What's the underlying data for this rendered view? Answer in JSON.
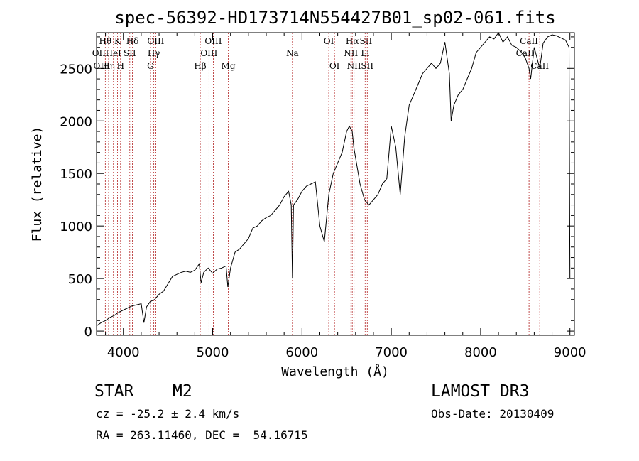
{
  "chart_data": {
    "type": "line",
    "title": "spec-56392-HD173714N554427B01_sp02-061.fits",
    "xlabel": "Wavelength (Å)",
    "ylabel": "Flux (relative)",
    "xlim": [
      3700,
      9050
    ],
    "ylim": [
      -40,
      2840
    ],
    "xticks": [
      4000,
      5000,
      6000,
      7000,
      8000,
      9000
    ],
    "yticks": [
      0,
      500,
      1000,
      1500,
      2000,
      2500
    ],
    "series": [
      {
        "name": "spectrum",
        "x": [
          3700,
          3750,
          3800,
          3850,
          3900,
          3950,
          4000,
          4050,
          4100,
          4150,
          4200,
          4230,
          4260,
          4300,
          4350,
          4400,
          4450,
          4500,
          4550,
          4600,
          4650,
          4700,
          4750,
          4800,
          4850,
          4870,
          4900,
          4950,
          5000,
          5050,
          5100,
          5150,
          5170,
          5200,
          5250,
          5300,
          5350,
          5400,
          5450,
          5500,
          5550,
          5600,
          5650,
          5700,
          5750,
          5800,
          5850,
          5880,
          5893,
          5905,
          5950,
          6000,
          6050,
          6100,
          6150,
          6200,
          6250,
          6300,
          6350,
          6400,
          6450,
          6500,
          6530,
          6563,
          6580,
          6600,
          6650,
          6700,
          6750,
          6800,
          6850,
          6900,
          6950,
          7000,
          7050,
          7100,
          7150,
          7200,
          7250,
          7300,
          7350,
          7400,
          7450,
          7500,
          7550,
          7600,
          7650,
          7670,
          7700,
          7750,
          7800,
          7850,
          7900,
          7950,
          8000,
          8050,
          8100,
          8150,
          8200,
          8250,
          8300,
          8350,
          8400,
          8450,
          8500,
          8542,
          8560,
          8600,
          8662,
          8700,
          8750,
          8800,
          8850,
          8900,
          8950,
          8990,
          9000
        ],
        "y": [
          50,
          80,
          100,
          130,
          150,
          180,
          200,
          220,
          240,
          250,
          260,
          80,
          230,
          280,
          300,
          350,
          380,
          450,
          520,
          540,
          560,
          570,
          560,
          580,
          640,
          460,
          560,
          600,
          550,
          590,
          600,
          620,
          420,
          600,
          750,
          780,
          830,
          880,
          980,
          1000,
          1050,
          1080,
          1100,
          1150,
          1200,
          1280,
          1330,
          1200,
          500,
          1200,
          1250,
          1330,
          1380,
          1400,
          1420,
          1000,
          850,
          1300,
          1500,
          1600,
          1700,
          1900,
          1950,
          1900,
          1750,
          1650,
          1400,
          1250,
          1200,
          1250,
          1300,
          1400,
          1450,
          1950,
          1750,
          1300,
          1850,
          2150,
          2250,
          2350,
          2450,
          2500,
          2550,
          2500,
          2550,
          2750,
          2450,
          2000,
          2150,
          2250,
          2300,
          2400,
          2500,
          2650,
          2700,
          2750,
          2800,
          2780,
          2840,
          2750,
          2800,
          2720,
          2700,
          2660,
          2600,
          2500,
          2400,
          2700,
          2500,
          2740,
          2800,
          2820,
          2810,
          2790,
          2770,
          2700,
          500
        ]
      }
    ],
    "lines": [
      {
        "name": "Hθ",
        "x": 3798,
        "row": 0
      },
      {
        "name": "OII",
        "x": 3727,
        "row": 1
      },
      {
        "name": "OIII",
        "x": 3760,
        "row": 2
      },
      {
        "name": "Hη",
        "x": 3835,
        "row": 2
      },
      {
        "name": "HeI",
        "x": 3889,
        "row": 1
      },
      {
        "name": "K",
        "x": 3934,
        "row": 0
      },
      {
        "name": "H",
        "x": 3969,
        "row": 2
      },
      {
        "name": "SII",
        "x": 4072,
        "row": 1
      },
      {
        "name": "Hδ",
        "x": 4102,
        "row": 0
      },
      {
        "name": "G",
        "x": 4304,
        "row": 2
      },
      {
        "name": "Hγ",
        "x": 4341,
        "row": 1
      },
      {
        "name": "OIII",
        "x": 4363,
        "row": 0
      },
      {
        "name": "Hβ",
        "x": 4861,
        "row": 2
      },
      {
        "name": "OIII",
        "x": 4959,
        "row": 1
      },
      {
        "name": "OIII",
        "x": 5007,
        "row": 0
      },
      {
        "name": "Mg",
        "x": 5175,
        "row": 2
      },
      {
        "name": "Na",
        "x": 5893,
        "row": 1
      },
      {
        "name": "OI",
        "x": 6300,
        "row": 0
      },
      {
        "name": "OI",
        "x": 6364,
        "row": 2
      },
      {
        "name": "NII",
        "x": 6548,
        "row": 1
      },
      {
        "name": "Hα",
        "x": 6563,
        "row": 0
      },
      {
        "name": "NII",
        "x": 6583,
        "row": 2
      },
      {
        "name": "Li",
        "x": 6707,
        "row": 1
      },
      {
        "name": "SII",
        "x": 6716,
        "row": 0
      },
      {
        "name": "SII",
        "x": 6731,
        "row": 2
      },
      {
        "name": "CaII",
        "x": 8498,
        "row": 1
      },
      {
        "name": "CaII",
        "x": 8542,
        "row": 0
      },
      {
        "name": "CaII",
        "x": 8662,
        "row": 2
      }
    ]
  },
  "info": {
    "class_label": "STAR",
    "subclass": "M2",
    "survey": "LAMOST DR3",
    "cz": "cz = -25.2 ± 2.4 km/s",
    "obs_date": "Obs-Date: 20130409",
    "coords": "RA = 263.11460, DEC =  54.16715"
  },
  "colors": {
    "line": "#000000",
    "marker": "#b22222"
  }
}
